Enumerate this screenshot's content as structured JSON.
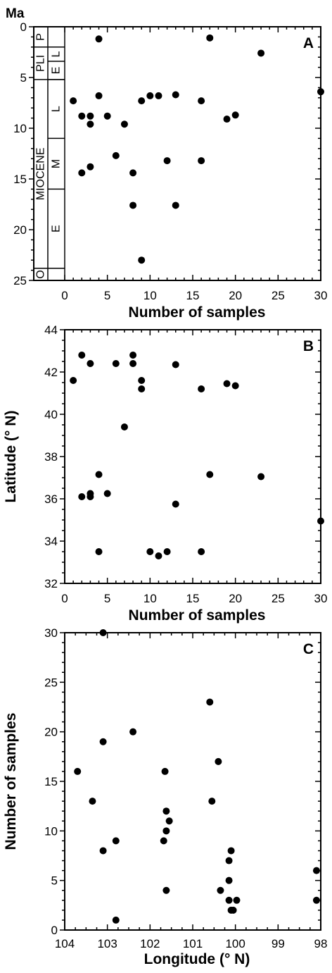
{
  "chart_data": [
    {
      "type": "scatter",
      "panel_label": "A",
      "xlabel": "Number of samples",
      "ylabel": "Ma",
      "xlim": [
        0,
        30
      ],
      "ylim": [
        0,
        25
      ],
      "y_inverted": true,
      "xticks": [
        0,
        5,
        10,
        15,
        20,
        25,
        30
      ],
      "yticks": [
        0,
        5,
        10,
        15,
        20,
        25
      ],
      "stratigraphy": {
        "epochs": [
          {
            "label": "P",
            "from": 0,
            "to": 2.0
          },
          {
            "label": "PLI",
            "from": 2.0,
            "to": 5.2
          },
          {
            "label": "MIOCENE",
            "from": 5.2,
            "to": 23.8
          },
          {
            "label": "O",
            "from": 23.8,
            "to": 25
          }
        ],
        "subdivisions": [
          {
            "label": "L",
            "from": 2.0,
            "to": 3.4
          },
          {
            "label": "E",
            "from": 3.4,
            "to": 5.2
          },
          {
            "label": "L",
            "from": 5.2,
            "to": 11.0
          },
          {
            "label": "M",
            "from": 11.0,
            "to": 16.0
          },
          {
            "label": "E",
            "from": 16.0,
            "to": 23.8
          }
        ]
      },
      "points": [
        {
          "x": 4,
          "y": 1.2
        },
        {
          "x": 17,
          "y": 1.1
        },
        {
          "x": 23,
          "y": 2.6
        },
        {
          "x": 30,
          "y": 6.4
        },
        {
          "x": 1,
          "y": 7.3
        },
        {
          "x": 4,
          "y": 6.8
        },
        {
          "x": 9,
          "y": 7.3
        },
        {
          "x": 10,
          "y": 6.8
        },
        {
          "x": 11,
          "y": 6.8
        },
        {
          "x": 13,
          "y": 6.7
        },
        {
          "x": 16,
          "y": 7.3
        },
        {
          "x": 2,
          "y": 8.8
        },
        {
          "x": 3,
          "y": 8.8
        },
        {
          "x": 3,
          "y": 9.6
        },
        {
          "x": 5,
          "y": 8.8
        },
        {
          "x": 7,
          "y": 9.6
        },
        {
          "x": 19,
          "y": 9.1
        },
        {
          "x": 20,
          "y": 8.7
        },
        {
          "x": 6,
          "y": 12.7
        },
        {
          "x": 12,
          "y": 13.2
        },
        {
          "x": 16,
          "y": 13.2
        },
        {
          "x": 3,
          "y": 13.8
        },
        {
          "x": 2,
          "y": 14.4
        },
        {
          "x": 8,
          "y": 14.4
        },
        {
          "x": 8,
          "y": 17.6
        },
        {
          "x": 13,
          "y": 17.6
        },
        {
          "x": 9,
          "y": 23.0
        }
      ]
    },
    {
      "type": "scatter",
      "panel_label": "B",
      "xlabel": "Number of samples",
      "ylabel": "Latitude (° N)",
      "xlim": [
        0,
        30
      ],
      "ylim": [
        32,
        44
      ],
      "xticks": [
        0,
        5,
        10,
        15,
        20,
        25,
        30
      ],
      "yticks": [
        32,
        34,
        36,
        38,
        40,
        42,
        44
      ],
      "points": [
        {
          "x": 1,
          "y": 41.6
        },
        {
          "x": 2,
          "y": 42.8
        },
        {
          "x": 3,
          "y": 42.4
        },
        {
          "x": 6,
          "y": 42.4
        },
        {
          "x": 8,
          "y": 42.8
        },
        {
          "x": 8,
          "y": 42.4
        },
        {
          "x": 9,
          "y": 41.6
        },
        {
          "x": 9,
          "y": 41.2
        },
        {
          "x": 13,
          "y": 42.35
        },
        {
          "x": 16,
          "y": 41.2
        },
        {
          "x": 19,
          "y": 41.45
        },
        {
          "x": 20,
          "y": 41.35
        },
        {
          "x": 7,
          "y": 39.4
        },
        {
          "x": 4,
          "y": 37.15
        },
        {
          "x": 17,
          "y": 37.15
        },
        {
          "x": 23,
          "y": 37.05
        },
        {
          "x": 2,
          "y": 36.1
        },
        {
          "x": 3,
          "y": 36.25
        },
        {
          "x": 3,
          "y": 36.1
        },
        {
          "x": 5,
          "y": 36.25
        },
        {
          "x": 13,
          "y": 35.75
        },
        {
          "x": 30,
          "y": 34.95
        },
        {
          "x": 4,
          "y": 33.5
        },
        {
          "x": 10,
          "y": 33.5
        },
        {
          "x": 11,
          "y": 33.3
        },
        {
          "x": 12,
          "y": 33.5
        },
        {
          "x": 16,
          "y": 33.5
        }
      ]
    },
    {
      "type": "scatter",
      "panel_label": "C",
      "xlabel": "Longitude (° N)",
      "ylabel": "Number of samples",
      "xlim": [
        104,
        98
      ],
      "ylim": [
        0,
        30
      ],
      "x_inverted": true,
      "xticks": [
        104,
        103,
        102,
        101,
        100,
        99,
        98
      ],
      "yticks": [
        0,
        5,
        10,
        15,
        20,
        25,
        30
      ],
      "points": [
        {
          "x": 103.1,
          "y": 30
        },
        {
          "x": 103.7,
          "y": 16
        },
        {
          "x": 103.35,
          "y": 13
        },
        {
          "x": 103.1,
          "y": 19
        },
        {
          "x": 103.1,
          "y": 8
        },
        {
          "x": 102.8,
          "y": 9
        },
        {
          "x": 102.8,
          "y": 1
        },
        {
          "x": 102.4,
          "y": 20
        },
        {
          "x": 101.65,
          "y": 16
        },
        {
          "x": 101.62,
          "y": 12
        },
        {
          "x": 101.55,
          "y": 11
        },
        {
          "x": 101.62,
          "y": 10
        },
        {
          "x": 101.68,
          "y": 9
        },
        {
          "x": 101.62,
          "y": 4
        },
        {
          "x": 100.6,
          "y": 23
        },
        {
          "x": 100.55,
          "y": 13
        },
        {
          "x": 100.4,
          "y": 17
        },
        {
          "x": 100.35,
          "y": 4
        },
        {
          "x": 100.1,
          "y": 8
        },
        {
          "x": 100.15,
          "y": 7
        },
        {
          "x": 100.15,
          "y": 5
        },
        {
          "x": 100.15,
          "y": 3
        },
        {
          "x": 100.1,
          "y": 2
        },
        {
          "x": 100.05,
          "y": 2
        },
        {
          "x": 99.97,
          "y": 3
        },
        {
          "x": 98.1,
          "y": 6
        },
        {
          "x": 98.1,
          "y": 3
        }
      ]
    }
  ]
}
